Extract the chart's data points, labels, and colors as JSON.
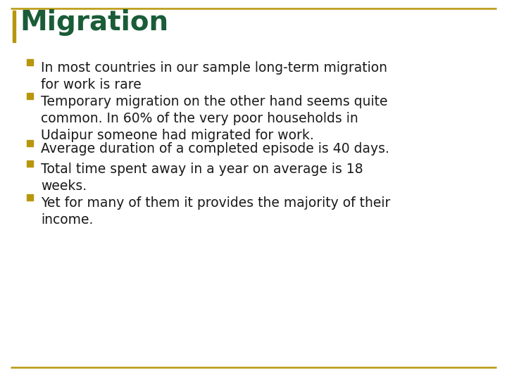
{
  "title": "Migration",
  "title_color": "#1a5c38",
  "title_fontsize": 28,
  "bullet_color": "#b8960c",
  "text_color": "#1a1a1a",
  "text_fontsize": 13.5,
  "background_color": "#ffffff",
  "border_color": "#b8960c",
  "left_bar_color": "#b8960c",
  "bullet_points": [
    "In most countries in our sample long-term migration\nfor work is rare",
    "Temporary migration on the other hand seems quite\ncommon. In 60% of the very poor households in\nUdaipur someone had migrated for work.",
    "Average duration of a completed episode is 40 days.",
    "Total time spent away in a year on average is 18\nweeks.",
    "Yet for many of them it provides the majority of their\nincome."
  ],
  "line_counts": [
    2,
    3,
    1,
    2,
    2
  ]
}
